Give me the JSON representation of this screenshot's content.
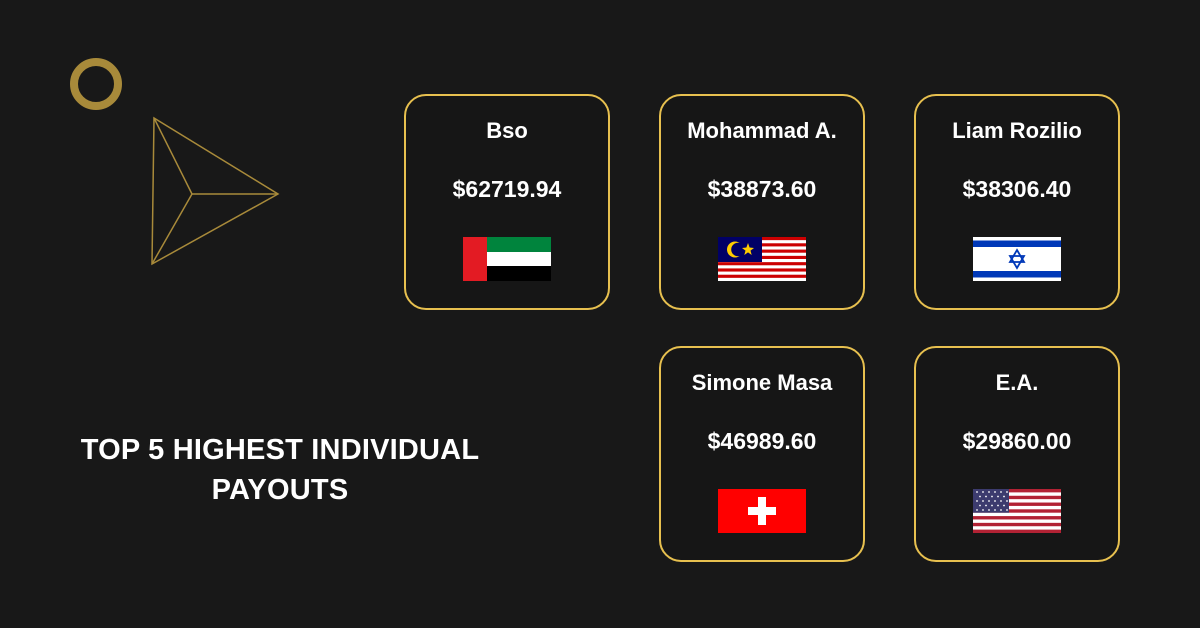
{
  "headline": {
    "line1": "TOP 5 HIGHEST INDIVIDUAL",
    "line2": "PAYOUTS"
  },
  "colors": {
    "background": "#181818",
    "accent": "#e7c04f",
    "ring": "#a88a3a"
  },
  "payouts": [
    {
      "name": "Bso",
      "amount": "$62719.94",
      "flag": "uae-flag-icon"
    },
    {
      "name": "Mohammad A.",
      "amount": "$38873.60",
      "flag": "malaysia-flag-icon"
    },
    {
      "name": "Liam Rozilio",
      "amount": "$38306.40",
      "flag": "israel-flag-icon"
    },
    {
      "name": "Simone Masa",
      "amount": "$46989.60",
      "flag": "switzerland-flag-icon"
    },
    {
      "name": "E.A.",
      "amount": "$29860.00",
      "flag": "usa-flag-icon"
    }
  ]
}
